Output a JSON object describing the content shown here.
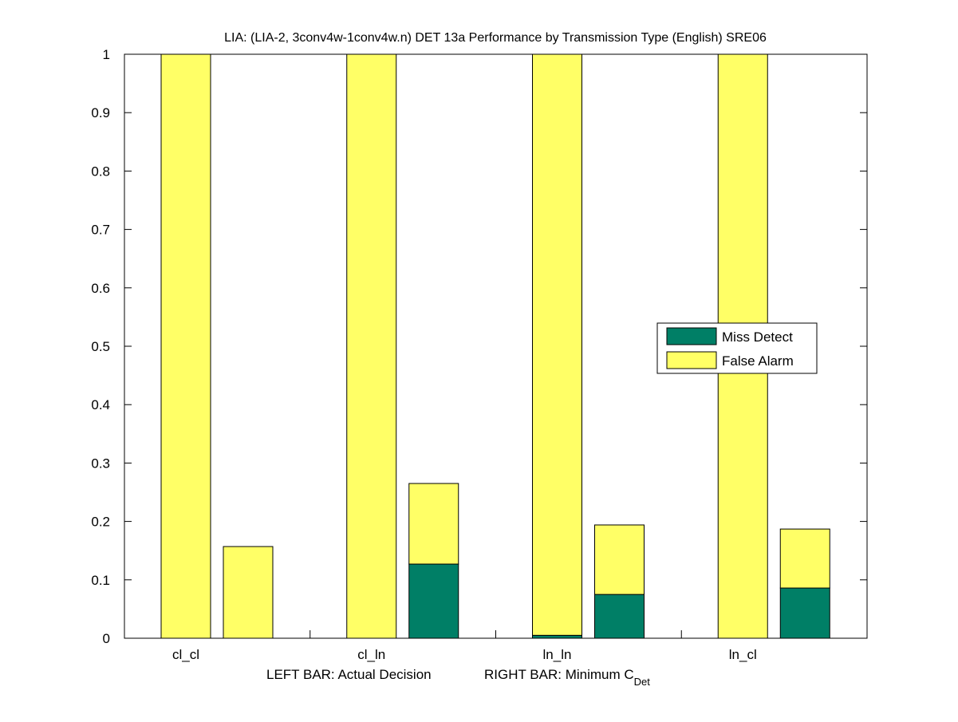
{
  "chart_data": {
    "type": "bar",
    "stacked": true,
    "title": "LIA: (LIA-2, 3conv4w-1conv4w.n) DET 13a Performance by Transmission Type (English) SRE06",
    "xlabel_left": "LEFT BAR: Actual Decision",
    "xlabel_right": "RIGHT BAR: Minimum C",
    "xlabel_right_sub": "Det",
    "ylabel": "",
    "ylim": [
      0,
      1
    ],
    "yticks": [
      "0",
      "0.1",
      "0.2",
      "0.3",
      "0.4",
      "0.5",
      "0.6",
      "0.7",
      "0.8",
      "0.9",
      "1"
    ],
    "categories": [
      "cl_cl",
      "cl_ln",
      "ln_ln",
      "ln_cl"
    ],
    "bars": {
      "left": {
        "miss_detect": [
          0,
          0,
          0.005,
          0
        ],
        "false_alarm": [
          1,
          1,
          0.995,
          1
        ]
      },
      "right": {
        "miss_detect": [
          0,
          0.127,
          0.075,
          0.086
        ],
        "false_alarm": [
          0.157,
          0.138,
          0.119,
          0.101
        ]
      }
    },
    "legend": {
      "placement": "right",
      "entries": [
        {
          "label": "Miss Detect",
          "color": "#007f66"
        },
        {
          "label": "False Alarm",
          "color": "#ffff66"
        }
      ]
    },
    "grid": false
  }
}
